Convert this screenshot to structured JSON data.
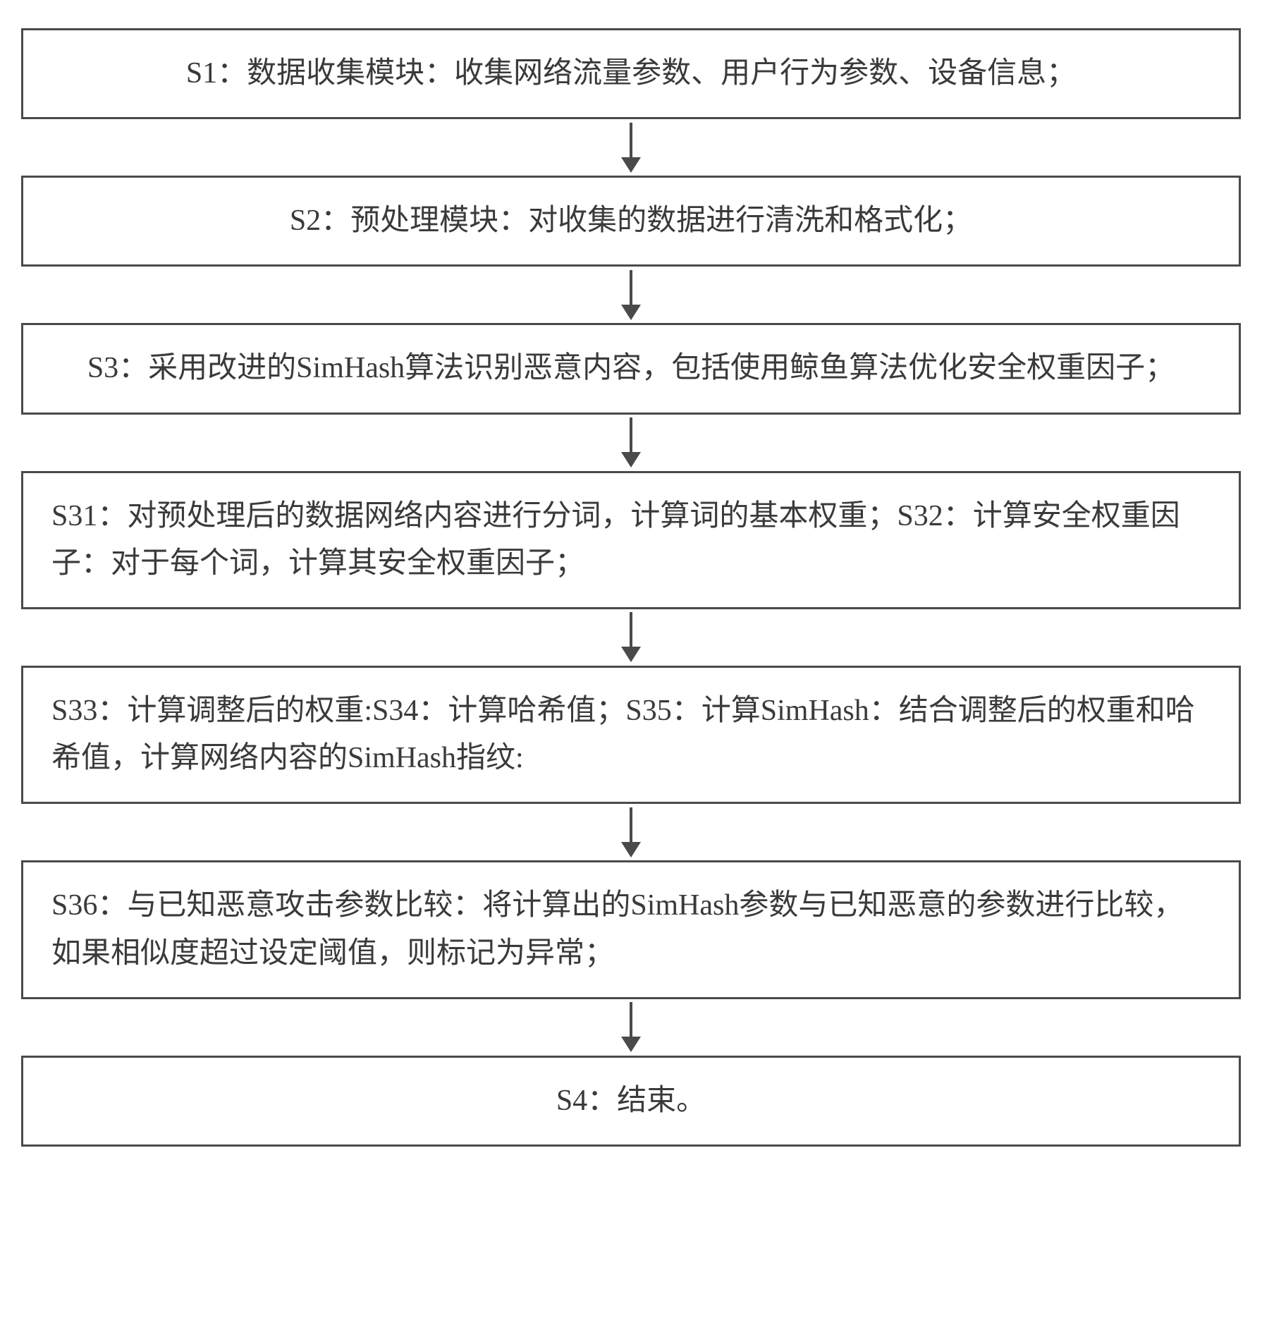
{
  "flowchart": {
    "type": "flowchart",
    "direction": "vertical",
    "border_color": "#4a4a4a",
    "border_width": 3,
    "background_color": "#ffffff",
    "text_color": "#3a3a3a",
    "font_size": 42,
    "arrow_color": "#4a4a4a",
    "arrow_line_width": 4,
    "arrow_line_height": 50,
    "arrow_head_width": 28,
    "arrow_head_height": 22,
    "box_padding": "28px 40px",
    "nodes": [
      {
        "id": "s1",
        "text": "S1：数据收集模块：收集网络流量参数、用户行为参数、设备信息；",
        "align": "center"
      },
      {
        "id": "s2",
        "text": "S2：预处理模块：对收集的数据进行清洗和格式化；",
        "align": "center"
      },
      {
        "id": "s3",
        "text": "S3：采用改进的SimHash算法识别恶意内容，包括使用鲸鱼算法优化安全权重因子；",
        "align": "center"
      },
      {
        "id": "s31_s32",
        "text": "S31：对预处理后的数据网络内容进行分词，计算词的基本权重；S32：计算安全权重因子：对于每个词，计算其安全权重因子；",
        "align": "left"
      },
      {
        "id": "s33_s35",
        "text": "S33：计算调整后的权重:S34：计算哈希值；S35：计算SimHash：结合调整后的权重和哈希值，计算网络内容的SimHash指纹:",
        "align": "left"
      },
      {
        "id": "s36",
        "text": "S36：与已知恶意攻击参数比较：将计算出的SimHash参数与已知恶意的参数进行比较，如果相似度超过设定阈值，则标记为异常；",
        "align": "left"
      },
      {
        "id": "s4",
        "text": "S4：结束。",
        "align": "center"
      }
    ],
    "edges": [
      {
        "from": "s1",
        "to": "s2"
      },
      {
        "from": "s2",
        "to": "s3"
      },
      {
        "from": "s3",
        "to": "s31_s32"
      },
      {
        "from": "s31_s32",
        "to": "s33_s35"
      },
      {
        "from": "s33_s35",
        "to": "s36"
      },
      {
        "from": "s36",
        "to": "s4"
      }
    ]
  }
}
